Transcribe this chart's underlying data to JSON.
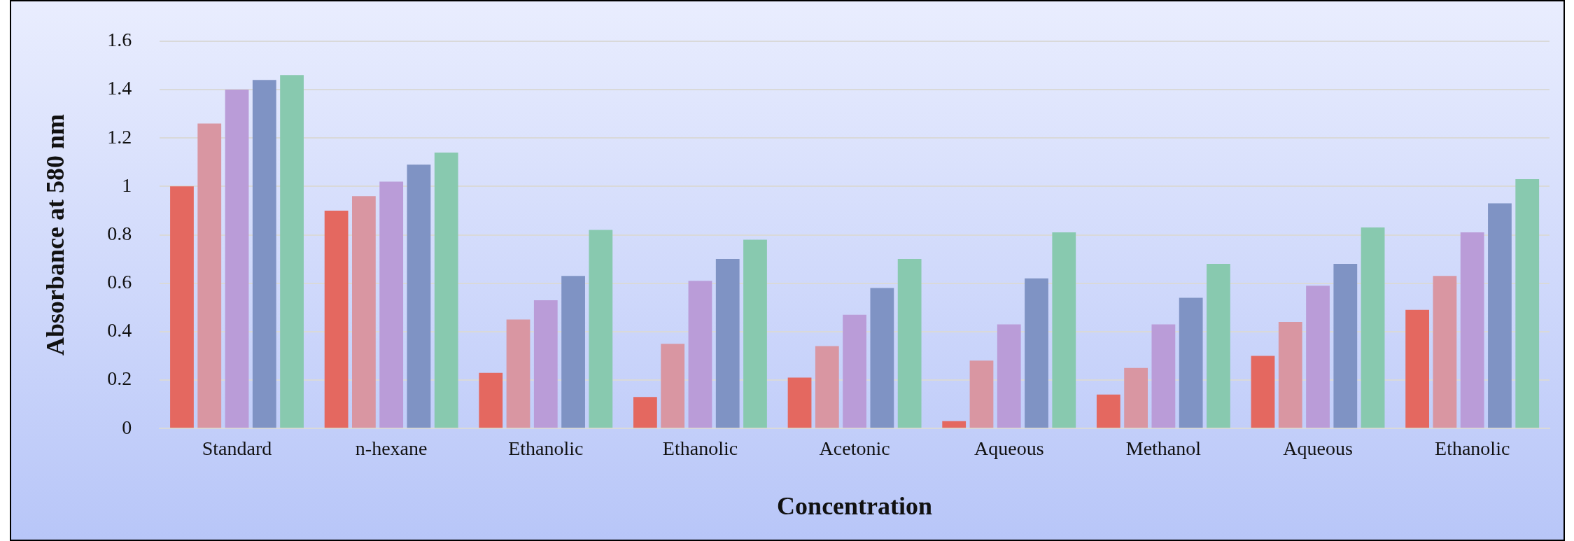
{
  "chart_data": {
    "type": "bar",
    "xlabel": "Concentration",
    "ylabel": "Absorbance at 580 nm",
    "categories": [
      "Standard",
      "n-hexane",
      "Ethanolic",
      "Ethanolic",
      "Acetonic",
      "Aqueous",
      "Methanol",
      "Aqueous",
      "Ethanolic"
    ],
    "series": [
      {
        "color": "#e46860",
        "values": [
          1.0,
          0.9,
          0.23,
          0.13,
          0.21,
          0.03,
          0.14,
          0.3,
          0.49
        ]
      },
      {
        "color": "#d996a2",
        "values": [
          1.26,
          0.96,
          0.45,
          0.35,
          0.34,
          0.28,
          0.25,
          0.44,
          0.63
        ]
      },
      {
        "color": "#ba9cd8",
        "values": [
          1.4,
          1.02,
          0.53,
          0.61,
          0.47,
          0.43,
          0.43,
          0.59,
          0.81
        ]
      },
      {
        "color": "#7f93c4",
        "values": [
          1.44,
          1.09,
          0.63,
          0.7,
          0.58,
          0.62,
          0.54,
          0.68,
          0.93
        ]
      },
      {
        "color": "#88c9af",
        "values": [
          1.46,
          1.14,
          0.82,
          0.78,
          0.7,
          0.81,
          0.68,
          0.83,
          1.03
        ]
      }
    ],
    "ylim": [
      0,
      1.6
    ],
    "yticks": [
      0,
      0.2,
      0.4,
      0.6,
      0.8,
      1,
      1.2,
      1.4,
      1.6
    ],
    "grid": "y",
    "legend": false
  }
}
